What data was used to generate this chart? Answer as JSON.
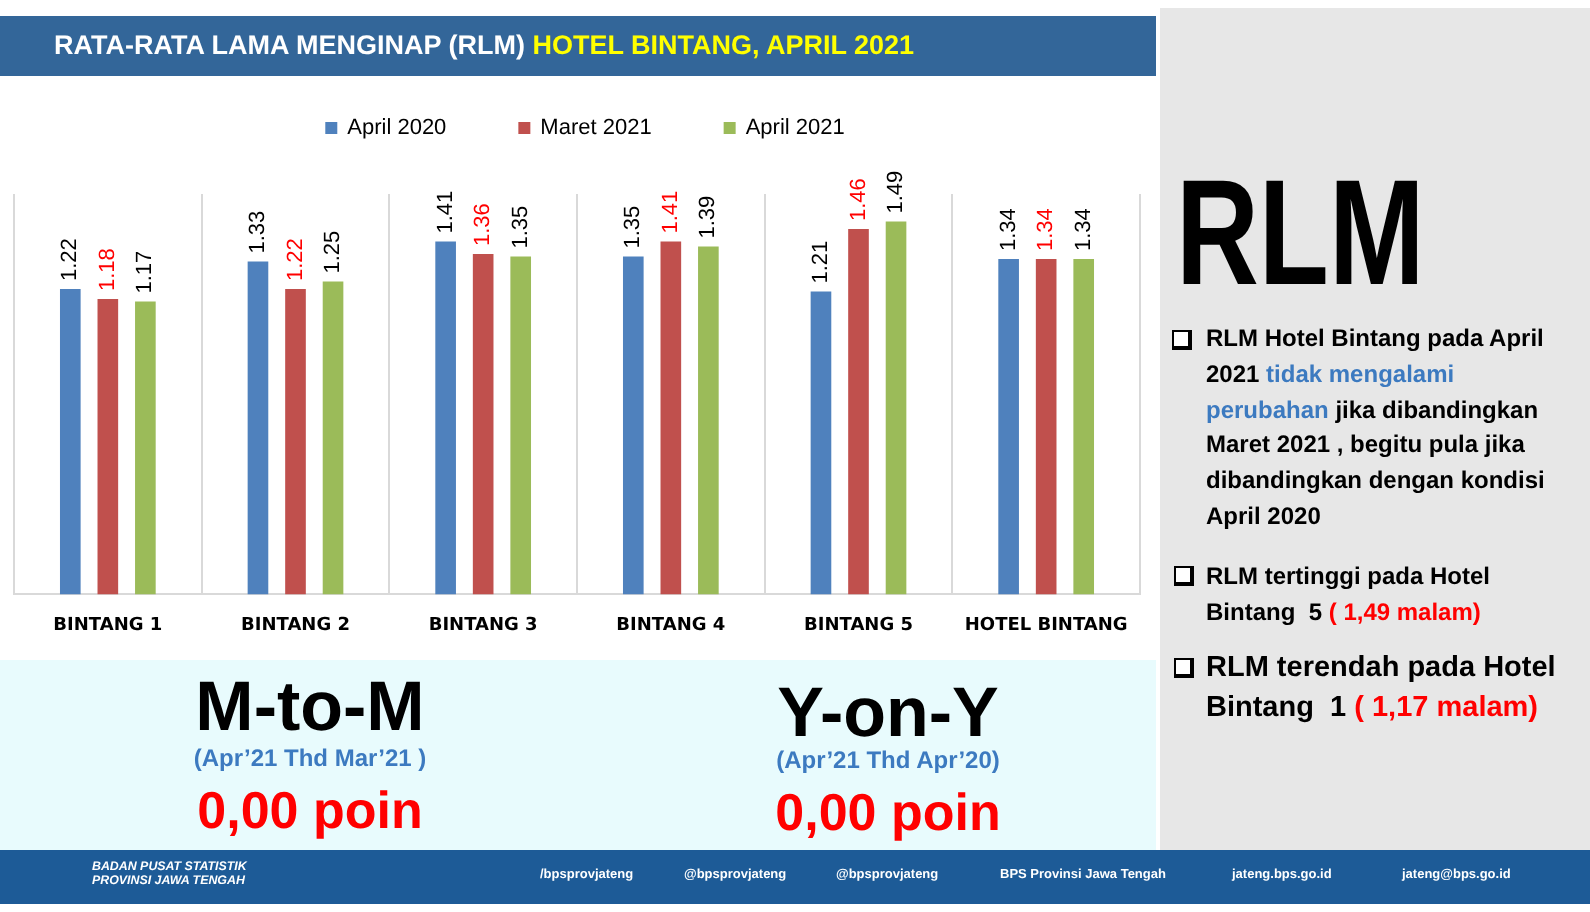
{
  "chart_data": {
    "type": "bar",
    "title": "RATA-RATA LAMA MENGINAP (RLM)",
    "subtitle": "HOTEL BINTANG, APRIL 2021",
    "categories": [
      "BINTANG 1",
      "BINTANG 2",
      "BINTANG 3",
      "BINTANG 4",
      "BINTANG 5",
      "HOTEL BINTANG"
    ],
    "series": [
      {
        "name": "April 2020",
        "color": "#4f81bd",
        "values": [
          1.22,
          1.33,
          1.41,
          1.35,
          1.21,
          1.34
        ]
      },
      {
        "name": "Maret 2021",
        "color": "#c0504d",
        "values": [
          1.18,
          1.22,
          1.36,
          1.41,
          1.46,
          1.34
        ]
      },
      {
        "name": "April 2021",
        "color": "#9bbb59",
        "values": [
          1.17,
          1.25,
          1.35,
          1.39,
          1.49,
          1.34
        ]
      }
    ],
    "ylim": [
      0,
      1.6
    ],
    "tick_labels": "x",
    "grid": "x",
    "legend": "top",
    "data_labels": true,
    "annotations": [
      "M-to-M",
      "(Apr’21 Thd Mar’21 )",
      "0,00 poin",
      "Y-on-Y",
      "(Apr’21 Thd Apr’20)",
      "0,00 poin",
      "RLM",
      "RLM Hotel Bintang pada April",
      "2021",
      "tidak mengalami",
      "perubahan",
      "jika dibandingkan",
      "Maret 2021 , begitu pula jika",
      "dibandingkan dengan kondisi",
      "April 2020",
      "RLM tertinggi pada Hotel",
      "Bintang  5",
      "( 1,49 malam)",
      "RLM terendah pada Hotel",
      "Bintang  1",
      "( 1,17 malam)",
      "BADAN PUSAT STATISTIK PROVINSI JAWA TENGAH",
      "/bpsprovjateng",
      "@bpsprovjateng",
      "@bpsprovjateng",
      "BPS Provinsi Jawa Tengah",
      "jateng.bps.go.id",
      "jateng@bps.go.id"
    ]
  }
}
